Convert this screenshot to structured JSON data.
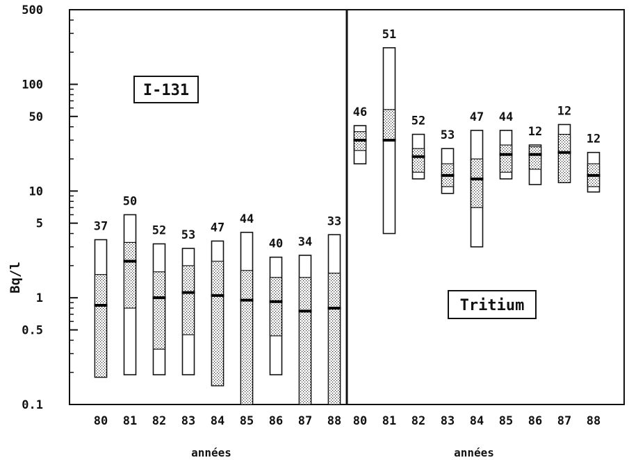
{
  "chart_data": {
    "type": "box",
    "ylabel": "Bq/l",
    "yscale": "log",
    "ylim": [
      0.1,
      500
    ],
    "yticks": [
      {
        "value": 500,
        "label": "500"
      },
      {
        "value": 100,
        "label": "100"
      },
      {
        "value": 50,
        "label": "50"
      },
      {
        "value": 10,
        "label": "10"
      },
      {
        "value": 5,
        "label": "5"
      },
      {
        "value": 1,
        "label": "1"
      },
      {
        "value": 0.5,
        "label": "0.5"
      },
      {
        "value": 0.1,
        "label": "0.1"
      }
    ],
    "panels": [
      {
        "title": "I-131",
        "xlabel": "années",
        "categories": [
          "80",
          "81",
          "82",
          "83",
          "84",
          "85",
          "86",
          "87",
          "88"
        ],
        "n": [
          "37",
          "50",
          "52",
          "53",
          "47",
          "44",
          "40",
          "34",
          "33"
        ],
        "max": [
          3.5,
          6.0,
          3.2,
          2.9,
          3.4,
          4.1,
          2.4,
          2.5,
          3.9
        ],
        "q_high": [
          1.65,
          3.3,
          1.75,
          2.0,
          2.2,
          1.8,
          1.55,
          1.55,
          1.7
        ],
        "median": [
          0.85,
          2.2,
          1.0,
          1.12,
          1.05,
          0.95,
          0.92,
          0.75,
          0.8
        ],
        "q_low": [
          0.18,
          0.8,
          0.33,
          0.45,
          0.15,
          0.1,
          0.44,
          0.1,
          0.1
        ],
        "min": [
          0.18,
          0.19,
          0.19,
          0.19,
          0.15,
          0.1,
          0.19,
          0.1,
          0.1
        ]
      },
      {
        "title": "Tritium",
        "xlabel": "années",
        "categories": [
          "80",
          "81",
          "82",
          "83",
          "84",
          "85",
          "86",
          "87",
          "88"
        ],
        "n": [
          "46",
          "51",
          "52",
          "53",
          "47",
          "44",
          "12",
          "12",
          "12"
        ],
        "max": [
          41,
          220,
          34,
          25,
          37,
          37,
          27,
          42,
          23
        ],
        "q_high": [
          36,
          58,
          25,
          18,
          20,
          27,
          26,
          34,
          18
        ],
        "median": [
          30,
          30,
          21,
          14,
          13,
          22,
          22,
          23,
          14
        ],
        "q_low": [
          24,
          30,
          15,
          11,
          7,
          15,
          16,
          12,
          11
        ],
        "min": [
          18,
          4,
          13,
          9.5,
          3,
          13,
          11.5,
          12,
          9.8
        ]
      }
    ]
  }
}
